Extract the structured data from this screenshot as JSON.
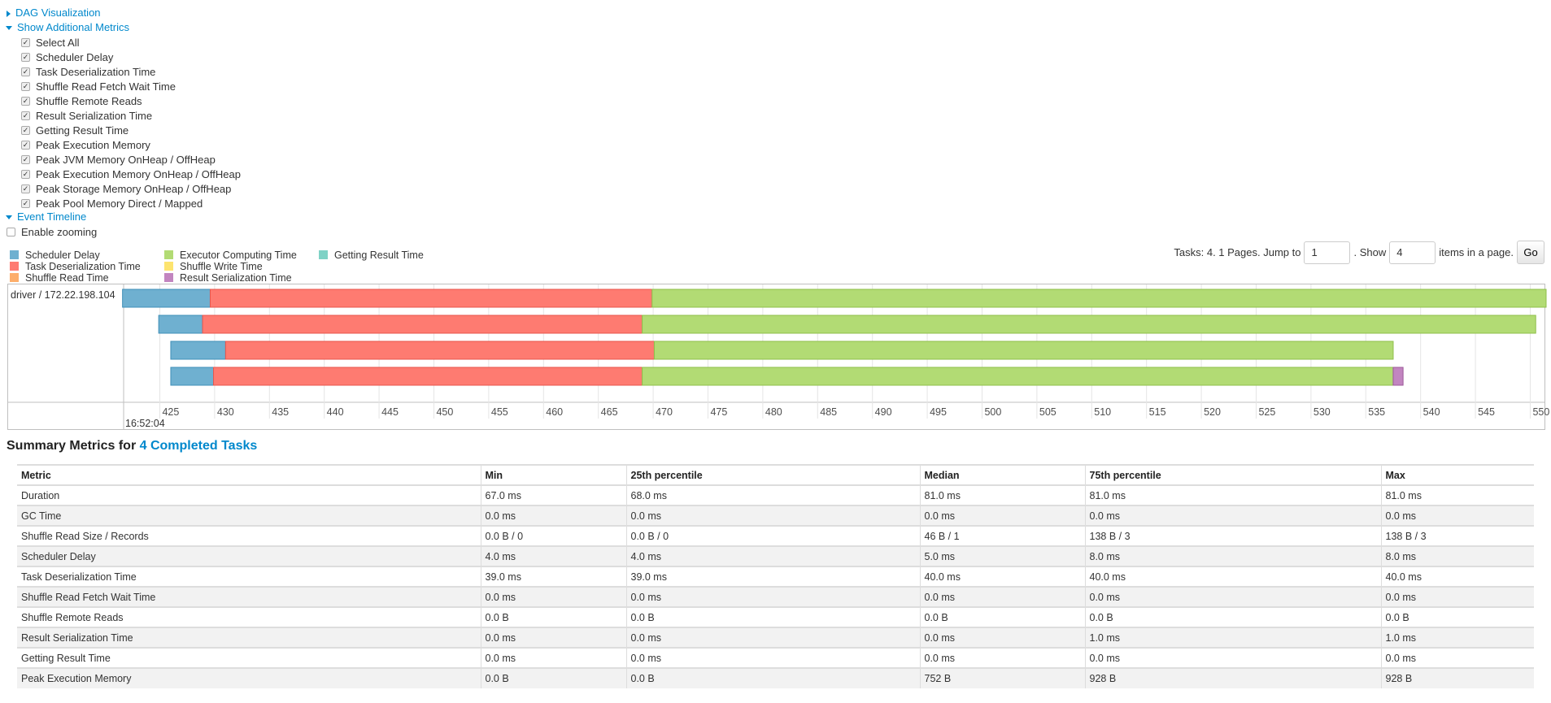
{
  "sections": {
    "dag": "DAG Visualization",
    "additional_metrics": "Show Additional Metrics",
    "event_timeline": "Event Timeline"
  },
  "metric_checkboxes": [
    {
      "label": "Select All",
      "checked": true
    },
    {
      "label": "Scheduler Delay",
      "checked": true
    },
    {
      "label": "Task Deserialization Time",
      "checked": true
    },
    {
      "label": "Shuffle Read Fetch Wait Time",
      "checked": true
    },
    {
      "label": "Shuffle Remote Reads",
      "checked": true
    },
    {
      "label": "Result Serialization Time",
      "checked": true
    },
    {
      "label": "Getting Result Time",
      "checked": true
    },
    {
      "label": "Peak Execution Memory",
      "checked": true
    },
    {
      "label": "Peak JVM Memory OnHeap / OffHeap",
      "checked": true
    },
    {
      "label": "Peak Execution Memory OnHeap / OffHeap",
      "checked": true
    },
    {
      "label": "Peak Storage Memory OnHeap / OffHeap",
      "checked": true
    },
    {
      "label": "Peak Pool Memory Direct / Mapped",
      "checked": true
    }
  ],
  "enable_zooming": {
    "label": "Enable zooming",
    "checked": false
  },
  "legend": [
    {
      "label": "Scheduler Delay",
      "color": "#6fb0d0"
    },
    {
      "label": "Task Deserialization Time",
      "color": "#fe7b71"
    },
    {
      "label": "Shuffle Read Time",
      "color": "#fdae6b"
    },
    {
      "label": "Executor Computing Time",
      "color": "#b2db74"
    },
    {
      "label": "Shuffle Write Time",
      "color": "#fde46f"
    },
    {
      "label": "Result Serialization Time",
      "color": "#c285c0"
    },
    {
      "label": "Getting Result Time",
      "color": "#7fd2c6"
    }
  ],
  "pagination": {
    "prefix": "Tasks: 4. 1 Pages. Jump to",
    "jump_value": "1",
    "show_label": ". Show",
    "show_value": "4",
    "suffix": "items in a page.",
    "go": "Go"
  },
  "chart_data": {
    "type": "timeline",
    "group_label": "driver / 172.22.198.104",
    "date_label": "16:52:04",
    "xlim": [
      421.7,
      551.3
    ],
    "ticks": [
      425,
      430,
      435,
      440,
      445,
      450,
      455,
      460,
      465,
      470,
      475,
      480,
      485,
      490,
      495,
      500,
      505,
      510,
      515,
      520,
      525,
      530,
      535,
      540,
      545,
      550
    ],
    "tasks": [
      {
        "segments": [
          {
            "phase": "Scheduler Delay",
            "start": 421.6,
            "end": 429.6
          },
          {
            "phase": "Task Deserialization Time",
            "start": 429.6,
            "end": 469.9
          },
          {
            "phase": "Executor Computing Time",
            "start": 469.9,
            "end": 552
          }
        ]
      },
      {
        "segments": [
          {
            "phase": "Scheduler Delay",
            "start": 424.9,
            "end": 428.9
          },
          {
            "phase": "Task Deserialization Time",
            "start": 428.9,
            "end": 469.0
          },
          {
            "phase": "Executor Computing Time",
            "start": 469.0,
            "end": 550.5
          }
        ]
      },
      {
        "segments": [
          {
            "phase": "Scheduler Delay",
            "start": 426.0,
            "end": 431.0
          },
          {
            "phase": "Task Deserialization Time",
            "start": 431.0,
            "end": 470.1
          },
          {
            "phase": "Executor Computing Time",
            "start": 470.1,
            "end": 537.5
          }
        ]
      },
      {
        "segments": [
          {
            "phase": "Scheduler Delay",
            "start": 426.0,
            "end": 429.9
          },
          {
            "phase": "Task Deserialization Time",
            "start": 429.9,
            "end": 469.0
          },
          {
            "phase": "Executor Computing Time",
            "start": 469.0,
            "end": 537.5
          },
          {
            "phase": "Result Serialization Time",
            "start": 537.5,
            "end": 538.4
          }
        ]
      }
    ]
  },
  "summary": {
    "title": "Summary Metrics for",
    "link": "4 Completed Tasks",
    "headers": [
      "Metric",
      "Min",
      "25th percentile",
      "Median",
      "75th percentile",
      "Max"
    ],
    "rows": [
      [
        "Duration",
        "67.0 ms",
        "68.0 ms",
        "81.0 ms",
        "81.0 ms",
        "81.0 ms"
      ],
      [
        "GC Time",
        "0.0 ms",
        "0.0 ms",
        "0.0 ms",
        "0.0 ms",
        "0.0 ms"
      ],
      [
        "Shuffle Read Size / Records",
        "0.0 B / 0",
        "0.0 B / 0",
        "46 B / 1",
        "138 B / 3",
        "138 B / 3"
      ],
      [
        "Scheduler Delay",
        "4.0 ms",
        "4.0 ms",
        "5.0 ms",
        "8.0 ms",
        "8.0 ms"
      ],
      [
        "Task Deserialization Time",
        "39.0 ms",
        "39.0 ms",
        "40.0 ms",
        "40.0 ms",
        "40.0 ms"
      ],
      [
        "Shuffle Read Fetch Wait Time",
        "0.0 ms",
        "0.0 ms",
        "0.0 ms",
        "0.0 ms",
        "0.0 ms"
      ],
      [
        "Shuffle Remote Reads",
        "0.0 B",
        "0.0 B",
        "0.0 B",
        "0.0 B",
        "0.0 B"
      ],
      [
        "Result Serialization Time",
        "0.0 ms",
        "0.0 ms",
        "0.0 ms",
        "1.0 ms",
        "1.0 ms"
      ],
      [
        "Getting Result Time",
        "0.0 ms",
        "0.0 ms",
        "0.0 ms",
        "0.0 ms",
        "0.0 ms"
      ],
      [
        "Peak Execution Memory",
        "0.0 B",
        "0.0 B",
        "752 B",
        "928 B",
        "928 B"
      ]
    ]
  }
}
